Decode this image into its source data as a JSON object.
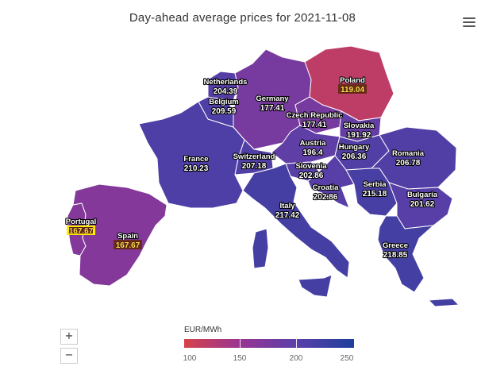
{
  "title": "Day-ahead average prices for 2021-11-08",
  "legend": {
    "unit": "EUR/MWh",
    "ticks": [
      "100",
      "150",
      "200",
      "250"
    ],
    "min": 100,
    "max": 250,
    "colors": [
      "#d4434a",
      "#9a3493",
      "#5a3fa8",
      "#1e3f9c"
    ]
  },
  "zoom": {
    "in_label": "+",
    "out_label": "−"
  },
  "menu": {
    "icon": "hamburger-menu-icon"
  },
  "regions": [
    {
      "key": "poland",
      "name": "Poland",
      "value": "119.04",
      "price": 119.04,
      "highlight": "dark"
    },
    {
      "key": "netherlands",
      "name": "Netherlands",
      "value": "204.39",
      "price": 204.39
    },
    {
      "key": "belgium",
      "name": "Belgium",
      "value": "209.59",
      "price": 209.59
    },
    {
      "key": "germany",
      "name": "Germany",
      "value": "177.41",
      "price": 177.41
    },
    {
      "key": "czech-republic",
      "name": "Czech Republic",
      "value": "177.41",
      "price": 177.41
    },
    {
      "key": "slovakia",
      "name": "Slovakia",
      "value": "191.92",
      "price": 191.92
    },
    {
      "key": "austria",
      "name": "Austria",
      "value": "196.4",
      "price": 196.4
    },
    {
      "key": "hungary",
      "name": "Hungary",
      "value": "206.36",
      "price": 206.36
    },
    {
      "key": "france",
      "name": "France",
      "value": "210.23",
      "price": 210.23
    },
    {
      "key": "switzerland",
      "name": "Switzerland",
      "value": "207.18",
      "price": 207.18
    },
    {
      "key": "romania",
      "name": "Romania",
      "value": "206.78",
      "price": 206.78
    },
    {
      "key": "slovenia",
      "name": "Slovenia",
      "value": "202.86",
      "price": 202.86
    },
    {
      "key": "croatia",
      "name": "Croatia",
      "value": "202.86",
      "price": 202.86
    },
    {
      "key": "serbia",
      "name": "Serbia",
      "value": "215.18",
      "price": 215.18
    },
    {
      "key": "bulgaria",
      "name": "Bulgaria",
      "value": "201.62",
      "price": 201.62
    },
    {
      "key": "italy",
      "name": "Italy",
      "value": "217.42",
      "price": 217.42
    },
    {
      "key": "portugal",
      "name": "Portugal",
      "value": "167.67",
      "price": 167.67,
      "highlight": "yellow"
    },
    {
      "key": "spain",
      "name": "Spain",
      "value": "167.67",
      "price": 167.67,
      "highlight": "dark"
    },
    {
      "key": "greece",
      "name": "Greece",
      "value": "218.85",
      "price": 218.85
    }
  ]
}
